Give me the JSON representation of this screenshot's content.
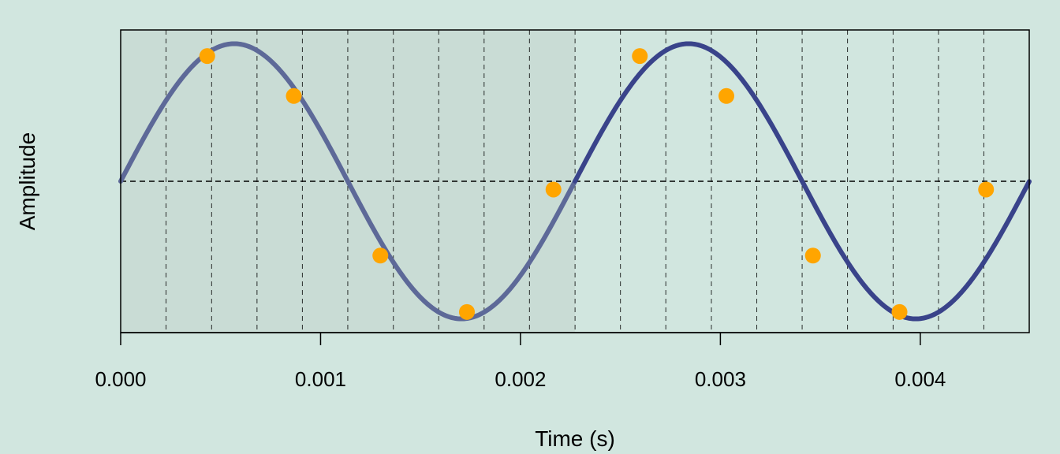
{
  "chart_data": {
    "type": "line",
    "title": "",
    "xlabel": "Time (s)",
    "ylabel": "Amplitude",
    "xlim": [
      0,
      0.004545
    ],
    "ylim": [
      -1.1,
      1.1
    ],
    "x_ticks": [
      0,
      0.001,
      0.002,
      0.003,
      0.004
    ],
    "x_tick_labels": [
      "0.000",
      "0.001",
      "0.002",
      "0.003",
      "0.004"
    ],
    "y_ticks_shown": false,
    "grid": "dashed vertical lines at sample times, dashed zero line",
    "wave": {
      "function": "sine",
      "frequency_hz": 440,
      "amplitude": 1,
      "periods_shown": 2
    },
    "highlighted_region": {
      "x": [
        0,
        0.002273
      ],
      "label": "first period"
    },
    "gridline_x": [
      0.000227,
      0.000455,
      0.000682,
      0.000909,
      0.001136,
      0.001364,
      0.001591,
      0.001818,
      0.002045,
      0.002273,
      0.0025,
      0.002727,
      0.002955,
      0.003182,
      0.003409,
      0.003636,
      0.003864,
      0.004091,
      0.004318
    ],
    "samples": {
      "x": [
        0.000433,
        0.000866,
        0.001299,
        0.001732,
        0.002165,
        0.002597,
        0.00303,
        0.003463,
        0.003896,
        0.004329
      ],
      "y": [
        0.91,
        0.62,
        -0.54,
        -0.95,
        -0.06,
        0.91,
        0.62,
        -0.54,
        -0.95,
        -0.06
      ]
    },
    "colors": {
      "background": "#d1e6df",
      "region": "#c9dcd5",
      "wave_first_period": "#5d6998",
      "wave": "#39438a",
      "samples": "#ffa500",
      "grid": "#000000"
    }
  }
}
